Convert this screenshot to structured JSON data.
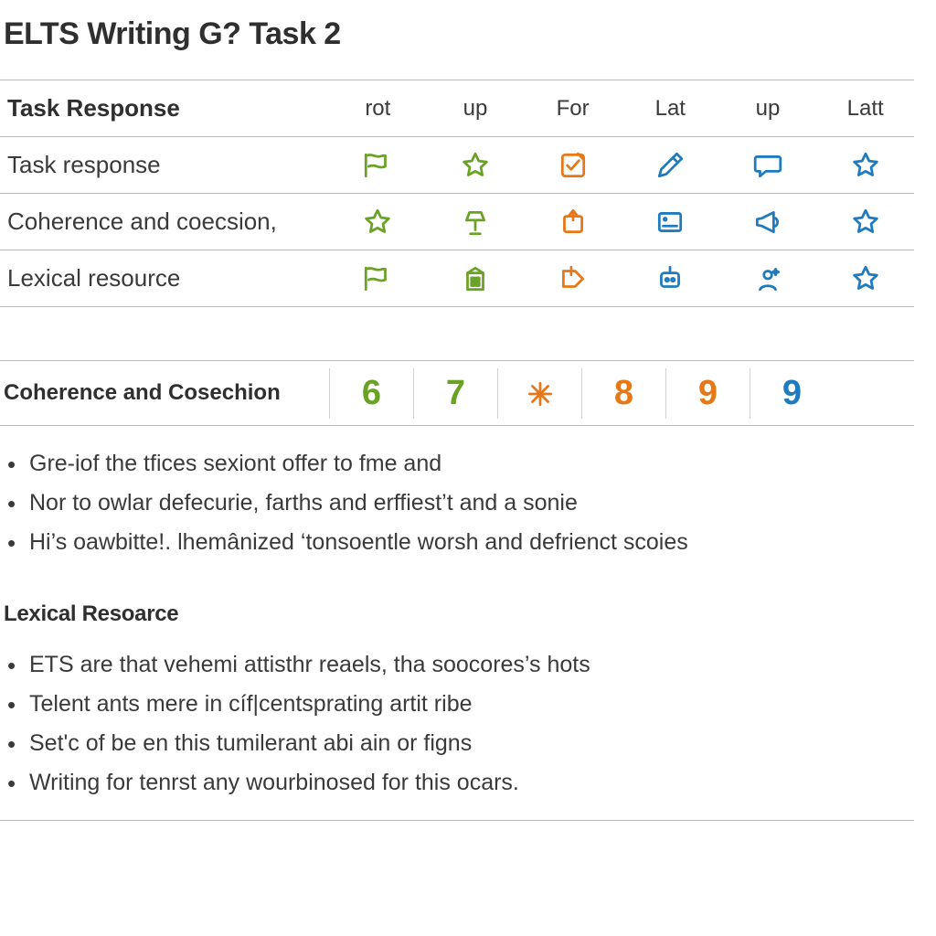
{
  "title": "ELTS Writing  G?  Task 2",
  "colors": {
    "green": "#6aa224",
    "orange": "#e77817",
    "blue": "#1f7bbf",
    "text": "#3a3a3a",
    "rule": "#b9b9b9"
  },
  "table": {
    "header_label": "Task Response",
    "headers": [
      "rot",
      "up",
      "For",
      "Lat",
      "up",
      "Latt"
    ],
    "rows": [
      {
        "label": "Task response",
        "icons": [
          {
            "name": "flag-icon",
            "color": "#6aa224"
          },
          {
            "name": "star-icon",
            "color": "#6aa224"
          },
          {
            "name": "check-note-icon",
            "color": "#e77817"
          },
          {
            "name": "pen-icon",
            "color": "#1f7bbf"
          },
          {
            "name": "speech-icon",
            "color": "#1f7bbf"
          },
          {
            "name": "star-icon",
            "color": "#1f7bbf"
          }
        ]
      },
      {
        "label": "Coherence and coecsion,",
        "icons": [
          {
            "name": "star-icon",
            "color": "#6aa224"
          },
          {
            "name": "lamp-icon",
            "color": "#6aa224"
          },
          {
            "name": "box-arrow-icon",
            "color": "#e77817"
          },
          {
            "name": "panel-icon",
            "color": "#1f7bbf"
          },
          {
            "name": "megaphone-icon",
            "color": "#1f7bbf"
          },
          {
            "name": "star-icon",
            "color": "#1f7bbf"
          }
        ]
      },
      {
        "label": "Lexical resource",
        "icons": [
          {
            "name": "flag-icon",
            "color": "#6aa224"
          },
          {
            "name": "building-icon",
            "color": "#6aa224"
          },
          {
            "name": "tag-arrow-icon",
            "color": "#e77817"
          },
          {
            "name": "robot-icon",
            "color": "#1f7bbf"
          },
          {
            "name": "sparkle-person-icon",
            "color": "#1f7bbf"
          },
          {
            "name": "star-icon",
            "color": "#1f7bbf"
          }
        ]
      }
    ]
  },
  "coherence_section": {
    "label": "Coherence and Cosechion",
    "scores": [
      {
        "value": "6",
        "color": "#6aa224"
      },
      {
        "value": "7",
        "color": "#6aa224"
      },
      {
        "value": "icon",
        "color": "#e77817"
      },
      {
        "value": "8",
        "color": "#e77817"
      },
      {
        "value": "9",
        "color": "#e77817"
      },
      {
        "value": "9",
        "color": "#1f7bbf"
      }
    ],
    "bullets": [
      "Gre-iof the tfices sexiont offer to fme and",
      "Nor to owlar defecurie, farths and erffiest’t and a sonie",
      "Hi’s oawbitte!. lhemânized ‘tonsoentle worsh and defrienct scoies"
    ]
  },
  "lexical_section": {
    "label": "Lexical Resoarce",
    "bullets": [
      "ETS are that vehemi attisthr reaels, tha soocores’s hots",
      "Telent ants mere in cíf|centsprating artit ribe",
      "Set'c of be en this tumilerant abi ain or figns",
      "Writing for tenrst any wourbinosed for this ocars."
    ]
  },
  "fonts": {
    "title_pt": 34,
    "header_pt": 26,
    "row_pt": 26,
    "score_pt": 38,
    "body_pt": 25
  }
}
